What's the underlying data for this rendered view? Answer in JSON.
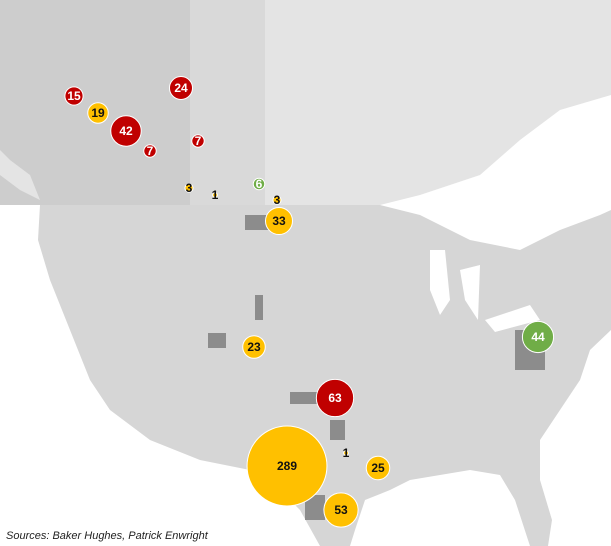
{
  "chart_data": {
    "type": "bubble-map",
    "source": "Sources: Baker Hughes, Patrick Enwright",
    "values": [
      15,
      19,
      42,
      24,
      7,
      7,
      3,
      1,
      6,
      3,
      33,
      23,
      63,
      1,
      25,
      289,
      53,
      44
    ],
    "colors": [
      "#c00000",
      "#ffc000",
      "#c00000",
      "#c00000",
      "#c00000",
      "#c00000",
      "#ffc000",
      "#ffc000",
      "#70ad47",
      "#ffc000",
      "#ffc000",
      "#ffc000",
      "#c00000",
      "#ffc000",
      "#ffc000",
      "#ffc000",
      "#ffc000",
      "#70ad47"
    ]
  }
}
